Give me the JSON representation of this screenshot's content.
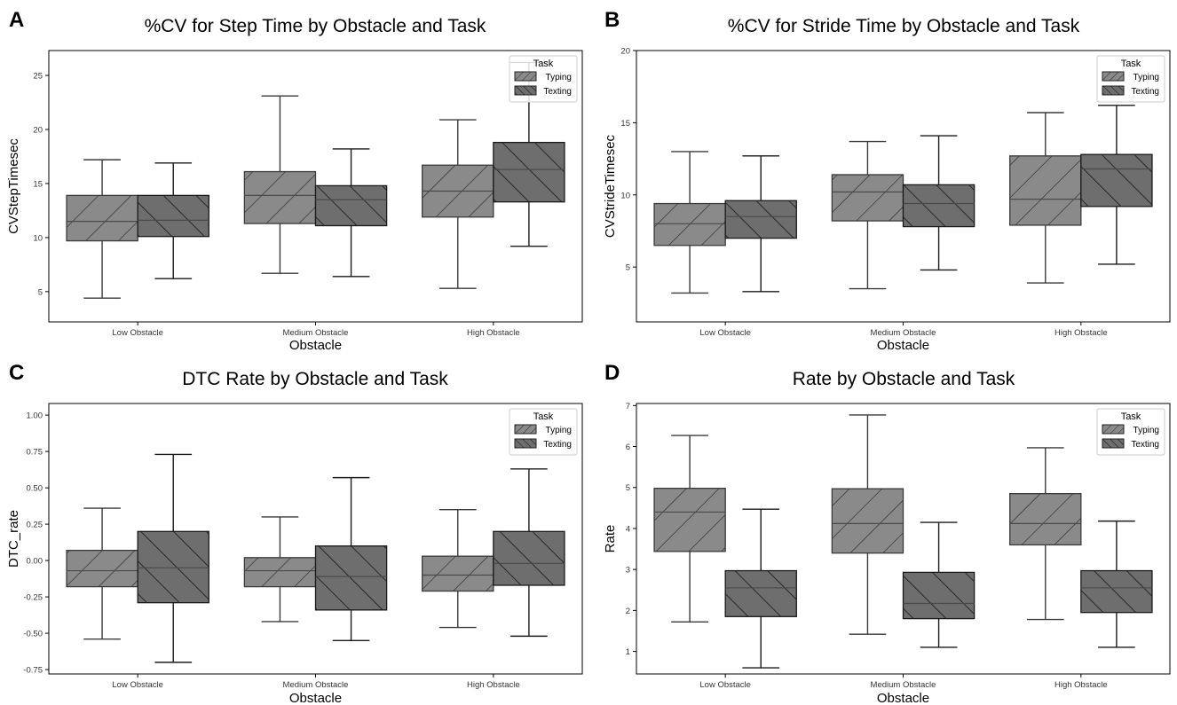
{
  "chart_data": [
    {
      "letter": "A",
      "type": "boxplot",
      "title": "%CV for Step Time by Obstacle and Task",
      "xlabel": "Obstacle",
      "ylabel": "CVStepTimesec",
      "categories": [
        "Low Obstacle",
        "Medium Obstacle",
        "High Obstacle"
      ],
      "legend": {
        "title": "Task",
        "position": "top-right",
        "entries": [
          "Typing",
          "Texting"
        ]
      },
      "ylim": [
        2.2,
        27.3
      ],
      "yticks": [
        5,
        10,
        15,
        20,
        25
      ],
      "grid": false,
      "series": [
        {
          "name": "Typing",
          "color": "#8a8a8a",
          "hatch": "/",
          "boxes": [
            {
              "min": 4.4,
              "q1": 9.7,
              "median": 11.5,
              "q3": 13.9,
              "max": 17.2
            },
            {
              "min": 6.7,
              "q1": 11.3,
              "median": 13.9,
              "q3": 16.1,
              "max": 23.1
            },
            {
              "min": 5.3,
              "q1": 11.9,
              "median": 14.3,
              "q3": 16.7,
              "max": 20.9
            }
          ]
        },
        {
          "name": "Texting",
          "color": "#6e6e6e",
          "hatch": "\\",
          "boxes": [
            {
              "min": 6.2,
              "q1": 10.1,
              "median": 11.6,
              "q3": 13.9,
              "max": 16.9
            },
            {
              "min": 6.4,
              "q1": 11.1,
              "median": 13.5,
              "q3": 14.8,
              "max": 18.2
            },
            {
              "min": 9.2,
              "q1": 13.3,
              "median": 16.3,
              "q3": 18.8,
              "max": 26.2
            }
          ]
        }
      ]
    },
    {
      "letter": "B",
      "type": "boxplot",
      "title": "%CV for Stride Time by Obstacle and Task",
      "xlabel": "Obstacle",
      "ylabel": "CVStrideTimesec",
      "categories": [
        "Low Obstacle",
        "Medium Obstacle",
        "High Obstacle"
      ],
      "legend": {
        "title": "Task",
        "position": "top-right",
        "entries": [
          "Typing",
          "Texting"
        ]
      },
      "ylim": [
        1.2,
        20.0
      ],
      "yticks": [
        5,
        10,
        15,
        20
      ],
      "grid": false,
      "series": [
        {
          "name": "Typing",
          "color": "#8a8a8a",
          "hatch": "/",
          "boxes": [
            {
              "min": 3.2,
              "q1": 6.5,
              "median": 8.0,
              "q3": 9.4,
              "max": 13.0
            },
            {
              "min": 3.5,
              "q1": 8.2,
              "median": 10.2,
              "q3": 11.4,
              "max": 13.7
            },
            {
              "min": 3.9,
              "q1": 7.9,
              "median": 9.7,
              "q3": 12.7,
              "max": 15.7
            }
          ]
        },
        {
          "name": "Texting",
          "color": "#6e6e6e",
          "hatch": "\\",
          "boxes": [
            {
              "min": 3.3,
              "q1": 7.0,
              "median": 8.5,
              "q3": 9.6,
              "max": 12.7
            },
            {
              "min": 4.8,
              "q1": 7.8,
              "median": 9.4,
              "q3": 10.7,
              "max": 14.1
            },
            {
              "min": 5.2,
              "q1": 9.2,
              "median": 11.8,
              "q3": 12.8,
              "max": 16.2
            }
          ]
        }
      ]
    },
    {
      "letter": "C",
      "type": "boxplot",
      "title": "DTC Rate by Obstacle and Task",
      "xlabel": "Obstacle",
      "ylabel": "DTC_rate",
      "categories": [
        "Low Obstacle",
        "Medium Obstacle",
        "High Obstacle"
      ],
      "legend": {
        "title": "Task",
        "position": "top-right",
        "entries": [
          "Typing",
          "Texting"
        ]
      },
      "ylim": [
        -0.78,
        1.08
      ],
      "yticks": [
        -0.75,
        -0.5,
        -0.25,
        0.0,
        0.25,
        0.5,
        0.75,
        1.0
      ],
      "ytick_labels": [
        "-0.75",
        "-0.50",
        "-0.25",
        "0.00",
        "0.25",
        "0.50",
        "0.75",
        "1.00"
      ],
      "grid": false,
      "series": [
        {
          "name": "Typing",
          "color": "#8a8a8a",
          "hatch": "/",
          "boxes": [
            {
              "min": -0.54,
              "q1": -0.18,
              "median": -0.07,
              "q3": 0.07,
              "max": 0.36
            },
            {
              "min": -0.42,
              "q1": -0.18,
              "median": -0.07,
              "q3": 0.02,
              "max": 0.3
            },
            {
              "min": -0.46,
              "q1": -0.21,
              "median": -0.1,
              "q3": 0.03,
              "max": 0.35
            }
          ]
        },
        {
          "name": "Texting",
          "color": "#6e6e6e",
          "hatch": "\\",
          "boxes": [
            {
              "min": -0.7,
              "q1": -0.29,
              "median": -0.05,
              "q3": 0.2,
              "max": 0.73
            },
            {
              "min": -0.55,
              "q1": -0.34,
              "median": -0.11,
              "q3": 0.1,
              "max": 0.57
            },
            {
              "min": -0.52,
              "q1": -0.17,
              "median": -0.02,
              "q3": 0.2,
              "max": 0.63
            }
          ]
        }
      ]
    },
    {
      "letter": "D",
      "type": "boxplot",
      "title": "Rate by Obstacle and Task",
      "xlabel": "Obstacle",
      "ylabel": "Rate",
      "categories": [
        "Low Obstacle",
        "Medium Obstacle",
        "High Obstacle"
      ],
      "legend": {
        "title": "Task",
        "position": "top-right",
        "entries": [
          "Typing",
          "Texting"
        ]
      },
      "ylim": [
        0.45,
        7.05
      ],
      "yticks": [
        1,
        2,
        3,
        4,
        5,
        6,
        7
      ],
      "grid": false,
      "series": [
        {
          "name": "Typing",
          "color": "#8a8a8a",
          "hatch": "/",
          "boxes": [
            {
              "min": 1.72,
              "q1": 3.44,
              "median": 4.4,
              "q3": 4.98,
              "max": 6.27
            },
            {
              "min": 1.42,
              "q1": 3.4,
              "median": 4.12,
              "q3": 4.97,
              "max": 6.77
            },
            {
              "min": 1.78,
              "q1": 3.6,
              "median": 4.12,
              "q3": 4.85,
              "max": 5.97
            }
          ]
        },
        {
          "name": "Texting",
          "color": "#6e6e6e",
          "hatch": "\\",
          "boxes": [
            {
              "min": 0.6,
              "q1": 1.85,
              "median": 2.55,
              "q3": 2.97,
              "max": 4.47
            },
            {
              "min": 1.1,
              "q1": 1.8,
              "median": 2.17,
              "q3": 2.93,
              "max": 4.15
            },
            {
              "min": 1.1,
              "q1": 1.95,
              "median": 2.55,
              "q3": 2.97,
              "max": 4.18
            }
          ]
        }
      ]
    }
  ]
}
